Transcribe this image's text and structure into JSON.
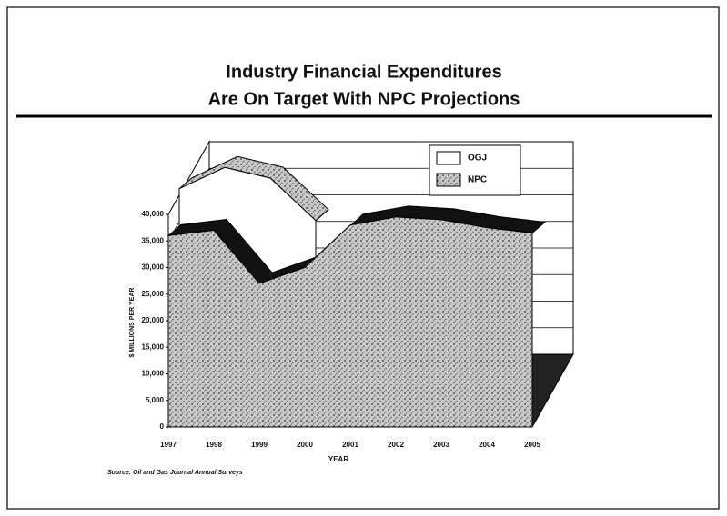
{
  "chart_data": {
    "type": "area3d",
    "title": "Industry Financial Expenditures",
    "subtitle": "Are On Target With NPC Projections",
    "y_label": "$ MILLIONS PER YEAR",
    "x_label": "YEAR",
    "source": "Source: Oil and Gas Journal Annual Surveys",
    "categories": [
      "1997",
      "1998",
      "1999",
      "2000",
      "2001",
      "2002",
      "2003",
      "2004",
      "2005"
    ],
    "series": [
      {
        "name": "OGJ",
        "color": "#ffffff",
        "values": [
          38000,
          42000,
          40000,
          32000,
          null,
          null,
          null,
          null,
          null
        ]
      },
      {
        "name": "NPC",
        "color": "#b5b5b5",
        "values": [
          36000,
          37000,
          27000,
          30000,
          38000,
          39500,
          39000,
          37500,
          36500
        ]
      }
    ],
    "ylim": [
      0,
      40000
    ],
    "yticks": [
      0,
      {
        "value": 5000,
        "label": "5,000"
      },
      {
        "value": 10000,
        "label": "10,000"
      },
      {
        "value": 15000,
        "label": "15,000"
      },
      {
        "value": 20000,
        "label": "20,000"
      },
      {
        "value": 25000,
        "label": "25,000"
      },
      {
        "value": 30000,
        "label": "30,000"
      },
      {
        "value": 35000,
        "label": "35,000"
      },
      {
        "value": 40000,
        "label": "40,000"
      }
    ],
    "grid": true,
    "legend": "top-right"
  }
}
